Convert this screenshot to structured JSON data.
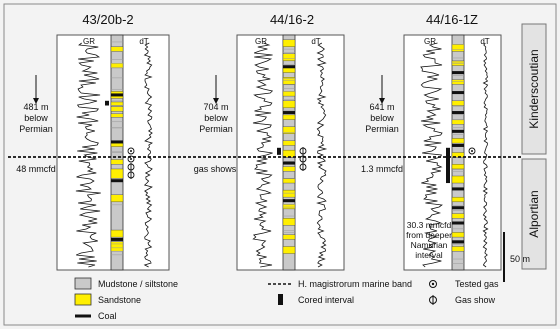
{
  "wells": [
    {
      "name": "43/20b-2",
      "gr_label": "GR",
      "dt_label": "dT",
      "annotation": [
        "481 m",
        "below",
        "Permian"
      ],
      "rate": "48 mmcfd",
      "bands": [
        {
          "from": 0.05,
          "to": 0.07,
          "lith": "sandstone"
        },
        {
          "from": 0.12,
          "to": 0.14,
          "lith": "sandstone"
        },
        {
          "from": 0.24,
          "to": 0.27,
          "lith": "sandstone"
        },
        {
          "from": 0.285,
          "to": 0.3,
          "lith": "sandstone"
        },
        {
          "from": 0.305,
          "to": 0.325,
          "lith": "sandstone"
        },
        {
          "from": 0.335,
          "to": 0.35,
          "lith": "sandstone"
        },
        {
          "from": 0.46,
          "to": 0.475,
          "lith": "sandstone"
        },
        {
          "from": 0.53,
          "to": 0.55,
          "lith": "sandstone"
        },
        {
          "from": 0.57,
          "to": 0.61,
          "lith": "sandstone"
        },
        {
          "from": 0.68,
          "to": 0.71,
          "lith": "sandstone"
        },
        {
          "from": 0.83,
          "to": 0.86,
          "lith": "sandstone"
        },
        {
          "from": 0.88,
          "to": 0.92,
          "lith": "sandstone"
        }
      ],
      "coal": [
        0.255,
        0.455,
        0.62,
        0.87
      ],
      "cored": [
        {
          "from": 0.28,
          "to": 0.3
        }
      ],
      "tested_gas_count": 2,
      "gas_show_count": 2
    },
    {
      "name": "44/16-2",
      "gr_label": "GR",
      "dt_label": "dT",
      "annotation": [
        "704 m",
        "below",
        "Permian"
      ],
      "rate": "gas shows",
      "bands": [
        {
          "from": 0.02,
          "to": 0.05,
          "lith": "sandstone"
        },
        {
          "from": 0.08,
          "to": 0.11,
          "lith": "sandstone"
        },
        {
          "from": 0.14,
          "to": 0.16,
          "lith": "sandstone"
        },
        {
          "from": 0.18,
          "to": 0.21,
          "lith": "sandstone"
        },
        {
          "from": 0.24,
          "to": 0.26,
          "lith": "sandstone"
        },
        {
          "from": 0.28,
          "to": 0.31,
          "lith": "sandstone"
        },
        {
          "from": 0.34,
          "to": 0.36,
          "lith": "sandstone"
        },
        {
          "from": 0.39,
          "to": 0.42,
          "lith": "sandstone"
        },
        {
          "from": 0.45,
          "to": 0.47,
          "lith": "sandstone"
        },
        {
          "from": 0.49,
          "to": 0.52,
          "lith": "sandstone"
        },
        {
          "from": 0.56,
          "to": 0.58,
          "lith": "sandstone"
        },
        {
          "from": 0.61,
          "to": 0.63,
          "lith": "sandstone"
        },
        {
          "from": 0.66,
          "to": 0.69,
          "lith": "sandstone"
        },
        {
          "from": 0.72,
          "to": 0.74,
          "lith": "sandstone"
        },
        {
          "from": 0.78,
          "to": 0.81,
          "lith": "sandstone"
        },
        {
          "from": 0.85,
          "to": 0.87,
          "lith": "sandstone"
        },
        {
          "from": 0.9,
          "to": 0.93,
          "lith": "sandstone"
        }
      ],
      "coal": [
        0.135,
        0.33,
        0.545,
        0.705
      ],
      "cored": [
        {
          "from": 0.48,
          "to": 0.51
        }
      ],
      "tested_gas_count": 0,
      "gas_show_count": 3
    },
    {
      "name": "44/16-1Z",
      "gr_label": "GR",
      "dt_label": "dT",
      "annotation": [
        "641 m",
        "below",
        "Permian"
      ],
      "rate": "1.3 mmcfd",
      "bands": [
        {
          "from": 0.04,
          "to": 0.07,
          "lith": "sandstone"
        },
        {
          "from": 0.11,
          "to": 0.13,
          "lith": "sandstone"
        },
        {
          "from": 0.19,
          "to": 0.21,
          "lith": "sandstone"
        },
        {
          "from": 0.28,
          "to": 0.3,
          "lith": "sandstone"
        },
        {
          "from": 0.36,
          "to": 0.38,
          "lith": "sandstone"
        },
        {
          "from": 0.44,
          "to": 0.46,
          "lith": "sandstone"
        },
        {
          "from": 0.5,
          "to": 0.52,
          "lith": "sandstone"
        },
        {
          "from": 0.55,
          "to": 0.57,
          "lith": "sandstone"
        },
        {
          "from": 0.6,
          "to": 0.63,
          "lith": "sandstone"
        },
        {
          "from": 0.69,
          "to": 0.71,
          "lith": "sandstone"
        },
        {
          "from": 0.76,
          "to": 0.78,
          "lith": "sandstone"
        },
        {
          "from": 0.84,
          "to": 0.86,
          "lith": "sandstone"
        },
        {
          "from": 0.9,
          "to": 0.92,
          "lith": "sandstone"
        }
      ],
      "coal": [
        0.16,
        0.245,
        0.33,
        0.41,
        0.47,
        0.655,
        0.735,
        0.8,
        0.88
      ],
      "cored": [
        {
          "from": 0.48,
          "to": 0.63
        }
      ],
      "tested_gas_count": 1,
      "gas_show_count": 0,
      "deep_note": [
        "30.3 mmcfd",
        "from deeper",
        "Namurian",
        "interval"
      ]
    }
  ],
  "stages": {
    "upper": "Kinderscoutian",
    "lower": "Alportian"
  },
  "scale_label": "50 m",
  "legend": {
    "mudstone": "Mudstone / siltstone",
    "sandstone": "Sandstone",
    "coal": "Coal",
    "marine_band": "H. magistrorum marine band",
    "cored": "Cored interval",
    "tested_gas": "Tested gas",
    "gas_show": "Gas show"
  },
  "colors": {
    "mudstone": "#c9c9c9",
    "sandstone": "#ffef00",
    "coal": "#111111",
    "panel": "#ffffff",
    "stage_box": "#e3e3e3"
  }
}
